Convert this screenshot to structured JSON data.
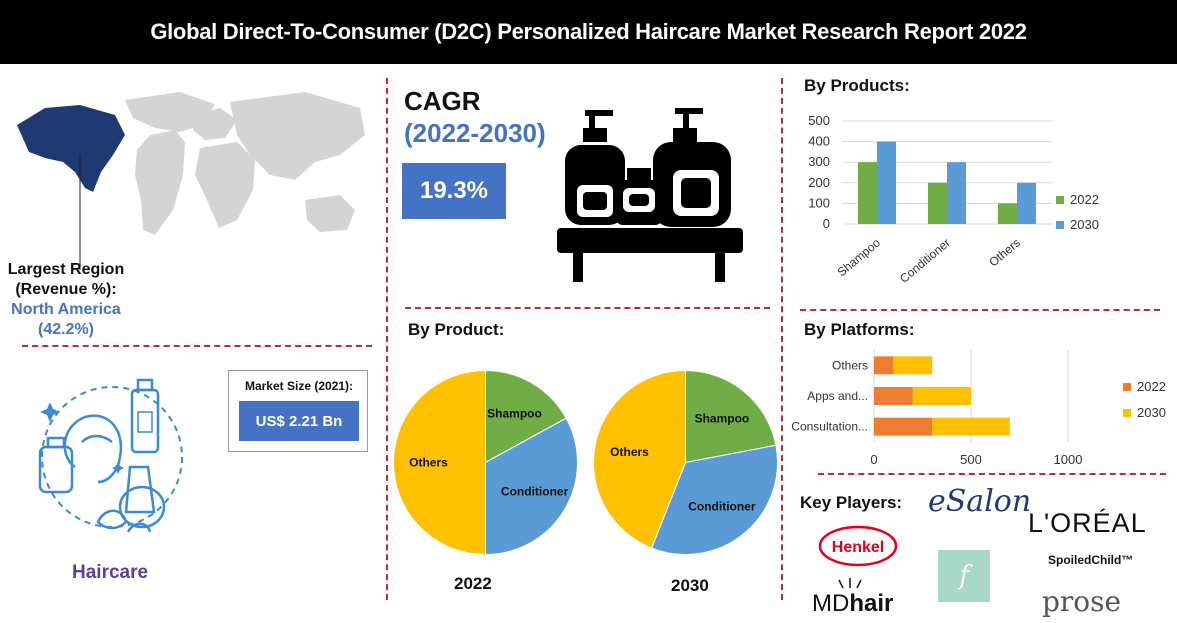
{
  "header": {
    "title": "Global Direct-To-Consumer (D2C) Personalized Haircare Market Research Report 2022"
  },
  "region": {
    "label": "Largest Region (Revenue %):",
    "line1": "Largest Region",
    "line2": "(Revenue %):",
    "name": "North America",
    "value": "(42.2%)"
  },
  "haircare": {
    "label": "Haircare"
  },
  "market_size": {
    "label": "Market Size (2021):",
    "value": "US$ 2.21 Bn"
  },
  "cagr": {
    "title": "CAGR",
    "years": "(2022-2030)",
    "value": "19.3%"
  },
  "sections": {
    "by_product": "By Product:",
    "by_products": "By Products:",
    "by_platforms": "By Platforms:",
    "key_players": "Key Players:"
  },
  "players": {
    "esalon": "eSalon",
    "loreal": "L'ORÉAL",
    "henkel": "Henkel",
    "spoiledchild": "SpoiledChild™",
    "function": "f",
    "mdhair_md": "MD",
    "mdhair_hair": "hair",
    "prose": "prose"
  },
  "colors": {
    "green": "#70ad47",
    "blue": "#5b9bd5",
    "orange": "#ed7d31",
    "yellow": "#ffc000",
    "accent": "#4472c4",
    "divider": "#b5302c"
  },
  "chart_data": [
    {
      "id": "pie2022",
      "type": "pie",
      "title": "2022",
      "slices": [
        {
          "label": "Shampoo",
          "value": 17,
          "color": "#70ad47"
        },
        {
          "label": "Conditioner",
          "value": 33,
          "color": "#5b9bd5"
        },
        {
          "label": "Others",
          "value": 50,
          "color": "#ffc000"
        }
      ]
    },
    {
      "id": "pie2030",
      "type": "pie",
      "title": "2030",
      "slices": [
        {
          "label": "Shampoo",
          "value": 22,
          "color": "#70ad47"
        },
        {
          "label": "Conditioner",
          "value": 34,
          "color": "#5b9bd5"
        },
        {
          "label": "Others",
          "value": 44,
          "color": "#ffc000"
        }
      ]
    },
    {
      "id": "products",
      "type": "bar",
      "categories": [
        "Shampoo",
        "Conditioner",
        "Others"
      ],
      "series": [
        {
          "name": "2022",
          "values": [
            300,
            200,
            100
          ],
          "color": "#70ad47"
        },
        {
          "name": "2030",
          "values": [
            400,
            300,
            200
          ],
          "color": "#5b9bd5"
        }
      ],
      "ylim": [
        0,
        500
      ],
      "yticks": [
        "500",
        "400",
        "300",
        "200",
        "100",
        "0"
      ],
      "legend": "right"
    },
    {
      "id": "platforms",
      "type": "bar",
      "orientation": "horizontal",
      "stacked": true,
      "categories": [
        "Others",
        "Apps and...",
        "Consultation..."
      ],
      "series": [
        {
          "name": "2022",
          "values": [
            100,
            200,
            300
          ],
          "color": "#ed7d31"
        },
        {
          "name": "2030",
          "values": [
            200,
            300,
            400
          ],
          "color": "#ffc000"
        }
      ],
      "xlim": [
        0,
        1000
      ],
      "xticks": [
        "0",
        "500",
        "1000"
      ],
      "legend": "right"
    }
  ]
}
